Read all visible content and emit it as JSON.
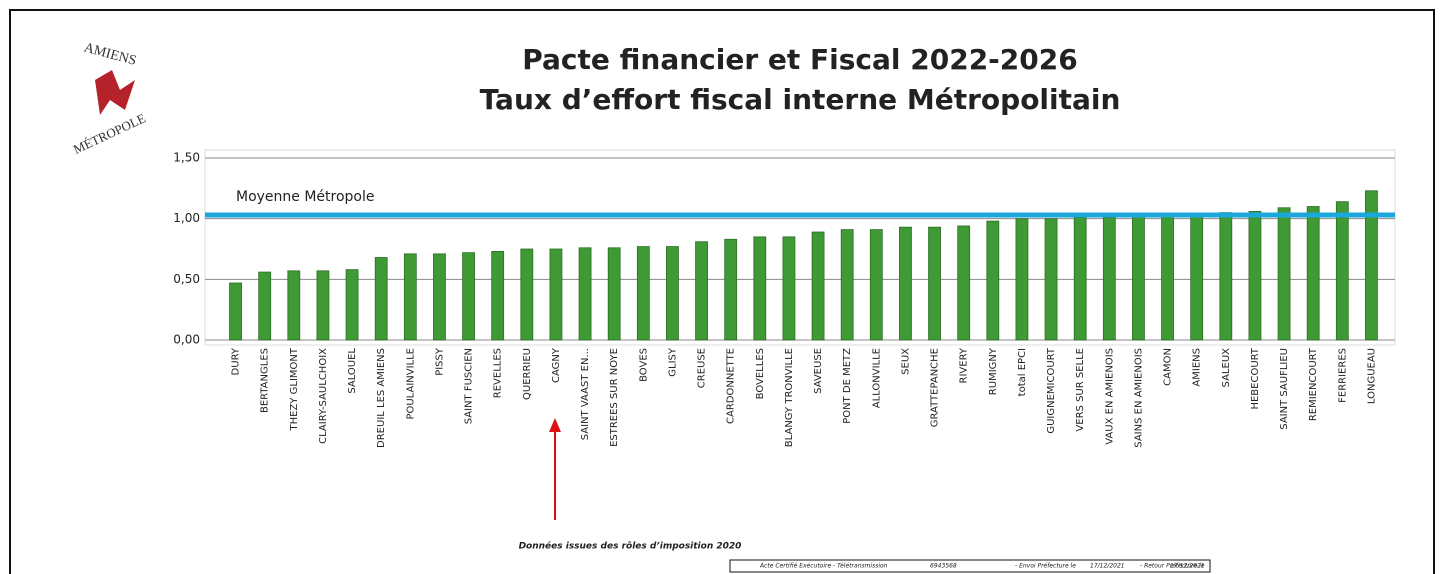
{
  "chart_data": {
    "type": "bar",
    "title": "Pacte financier et Fiscal 2022-2026",
    "subtitle": "Taux d’effort fiscal interne Métropolitain",
    "logo_top": "AMIENS",
    "logo_bottom": "MÉTROPOLE",
    "categories": [
      "DURY",
      "BERTANGLES",
      "THEZY GLIMONT",
      "CLAIRY-SAULCHOIX",
      "SALOUEL",
      "DREUIL LES AMIENS",
      "POULAINVILLE",
      "PISSY",
      "SAINT FUSCIEN",
      "REVELLES",
      "QUERRIEU",
      "CAGNY",
      "SAINT VAAST EN...",
      "ESTREES SUR NOYE",
      "BOVES",
      "GLISY",
      "CREUSE",
      "CARDONNETTE",
      "BOVELLES",
      "BLANGY TRONVILLE",
      "SAVEUSE",
      "PONT DE METZ",
      "ALLONVILLE",
      "SEUX",
      "GRATTEPANCHE",
      "RIVERY",
      "RUMIGNY",
      "total EPCI",
      "GUIGNEMICOURT",
      "VERS SUR SELLE",
      "VAUX EN AMIENOIS",
      "SAINS EN AMIENOIS",
      "CAMON",
      "AMIENS",
      "SALEUX",
      "HEBECOURT",
      "SAINT SAUFLIEU",
      "REMIENCOURT",
      "FERRIERES",
      "LONGUEAU"
    ],
    "values": [
      0.47,
      0.56,
      0.57,
      0.57,
      0.58,
      0.68,
      0.71,
      0.71,
      0.72,
      0.73,
      0.75,
      0.75,
      0.76,
      0.76,
      0.77,
      0.77,
      0.81,
      0.83,
      0.85,
      0.85,
      0.89,
      0.91,
      0.91,
      0.93,
      0.93,
      0.94,
      0.98,
      1.0,
      1.0,
      1.01,
      1.01,
      1.02,
      1.02,
      1.04,
      1.05,
      1.06,
      1.09,
      1.1,
      1.14,
      1.23
    ],
    "color": "#3f9a35",
    "ylim": [
      0,
      1.5
    ],
    "yticks": [
      {
        "value": 0,
        "label": "0,00"
      },
      {
        "value": 0.5,
        "label": "0,50"
      },
      {
        "value": 1,
        "label": "1,00"
      },
      {
        "value": 1.5,
        "label": "1,50"
      }
    ],
    "grid": true,
    "reference_line": {
      "label": "Moyenne Métropole",
      "value": 1.03,
      "color": "#1aa7dc"
    },
    "source": "Données issues des rôles d’imposition 2020",
    "stamp": [
      "Acte Certifié Exécutoire - Télétransmission",
      "6943568",
      "- Envoi Préfecture le",
      "17/12/2021",
      "- Retour Préfecture le",
      "17/12/2021"
    ]
  }
}
